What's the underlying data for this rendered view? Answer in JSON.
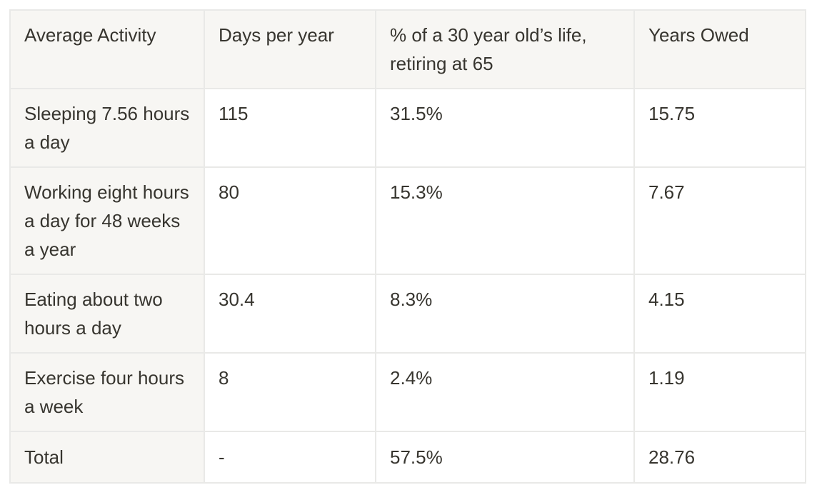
{
  "table": {
    "headers": [
      "Average Activity",
      "Days per year",
      "% of a 30 year old’s life, retiring at 65",
      "Years Owed"
    ],
    "rows": [
      [
        "Sleeping 7.56 hours a day",
        "115",
        "31.5%",
        "15.75"
      ],
      [
        "Working eight hours a day for 48 weeks a year",
        "80",
        "15.3%",
        "7.67"
      ],
      [
        "Eating about two hours a day",
        "30.4",
        "8.3%",
        "4.15"
      ],
      [
        "Exercise four hours a week",
        "8",
        "2.4%",
        "1.19"
      ],
      [
        "Total",
        "-",
        "57.5%",
        "28.76"
      ]
    ]
  },
  "colors": {
    "header_bg": "#f7f6f3",
    "border": "#e9e9e7",
    "text": "#37352f"
  }
}
